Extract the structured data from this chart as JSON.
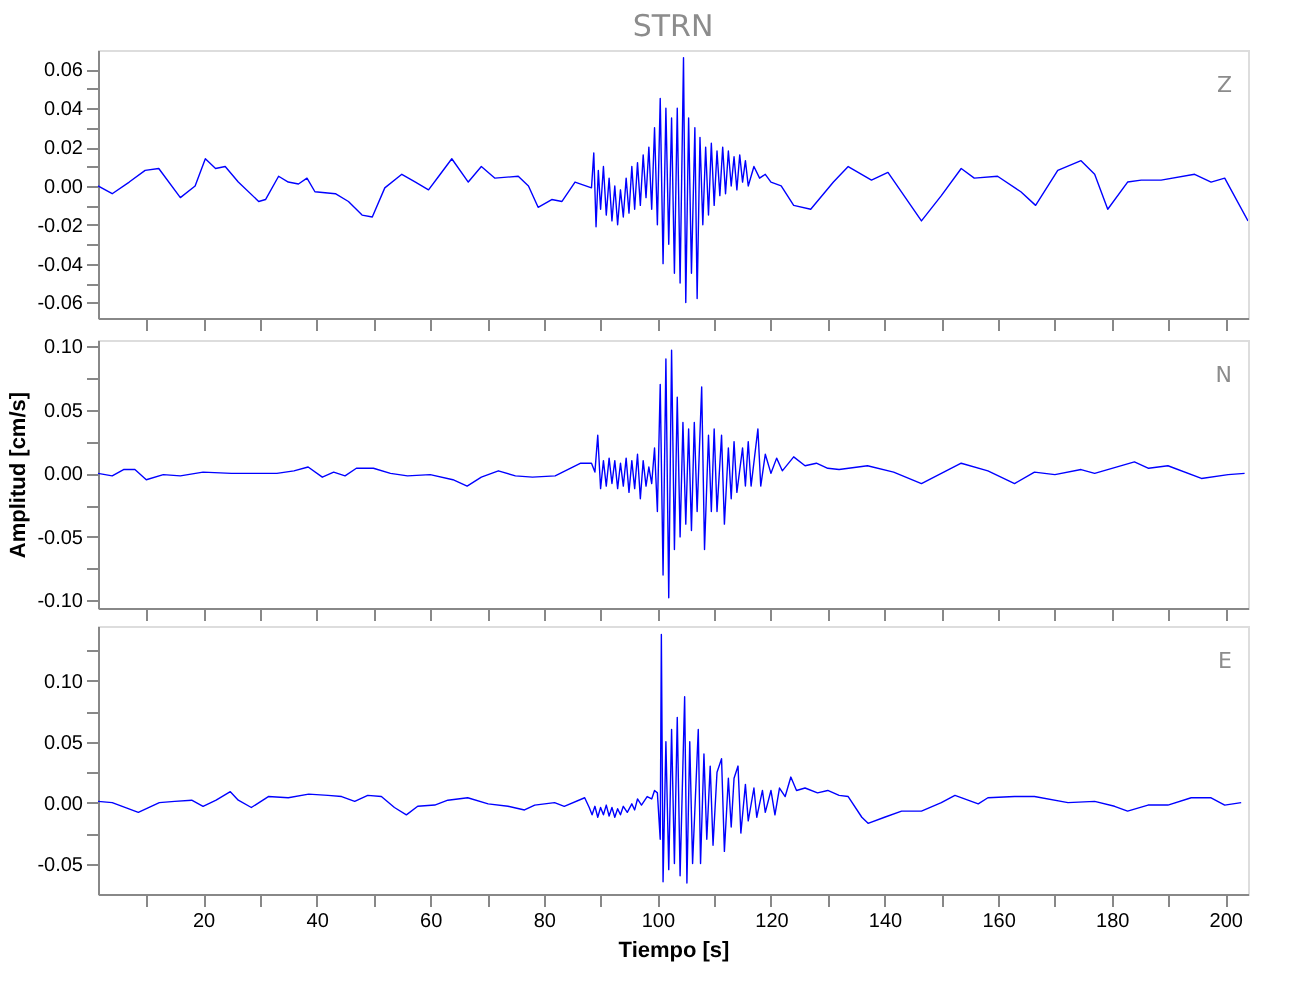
{
  "chart_data": [
    {
      "type": "line",
      "title": "STRN",
      "annotations": [
        "Z"
      ],
      "tick_labels": "y",
      "grid": false,
      "xlim": [
        1.5,
        204
      ],
      "ylim": [
        -0.068,
        0.07
      ],
      "xticks": [
        {
          "value": 10,
          "label": null
        },
        20,
        {
          "value": 30,
          "label": null
        },
        40,
        {
          "value": 50,
          "label": null
        },
        60,
        {
          "value": 70,
          "label": null
        },
        80,
        {
          "value": 90,
          "label": null
        },
        100,
        {
          "value": 110,
          "label": null
        },
        120,
        {
          "value": 130,
          "label": null
        },
        140,
        {
          "value": 150,
          "label": null
        },
        160,
        {
          "value": 170,
          "label": null
        },
        180,
        {
          "value": 190,
          "label": null
        },
        200
      ],
      "yticks": [
        {
          "value": -0.06,
          "label": "-0.06"
        },
        {
          "value": -0.05,
          "label": null
        },
        {
          "value": -0.04,
          "label": "-0.04"
        },
        {
          "value": -0.03,
          "label": null
        },
        {
          "value": -0.02,
          "label": "-0.02"
        },
        {
          "value": -0.01,
          "label": null
        },
        {
          "value": 0,
          "label": "0.00"
        },
        {
          "value": 0.01,
          "label": null
        },
        {
          "value": 0.02,
          "label": "0.02"
        },
        {
          "value": 0.03,
          "label": null
        },
        {
          "value": 0.04,
          "label": "0.04"
        },
        {
          "value": 0.05,
          "label": null
        },
        {
          "value": 0.06,
          "label": "0.06"
        }
      ],
      "x": [
        1.5,
        4,
        7,
        9.8,
        12.2,
        16,
        18.6,
        20.4,
        22.2,
        23.9,
        26.2,
        29.8,
        31,
        33.3,
        35,
        36.8,
        38.3,
        39.7,
        43.3,
        45.6,
        48,
        49.8,
        52,
        55,
        57.4,
        59.7,
        61.5,
        63.8,
        66.7,
        69,
        71.4,
        75.5,
        77.3,
        79,
        81.4,
        83.2,
        85.5,
        88.4,
        88.8,
        89.2,
        89.6,
        90,
        90.5,
        91,
        91.5,
        92,
        92.5,
        93,
        93.5,
        94,
        94.5,
        95,
        95.5,
        96,
        96.5,
        97,
        97.5,
        98,
        98.5,
        99,
        99.5,
        100,
        100.5,
        101,
        101.5,
        102,
        102.5,
        103,
        103.5,
        104,
        104.6,
        105,
        105.5,
        106,
        106.6,
        107,
        107.5,
        108,
        108.5,
        109,
        109.5,
        110,
        110.5,
        111,
        111.5,
        112,
        112.5,
        113,
        113.5,
        114,
        114.5,
        115,
        115.5,
        116,
        117,
        118,
        119,
        120,
        121.8,
        124,
        127,
        131,
        133.6,
        137.7,
        140.6,
        146.5,
        150,
        153.5,
        155.8,
        159.9,
        164,
        166.6,
        170.5,
        174.6,
        177,
        179.3,
        182.8,
        185.2,
        188.7,
        194.6,
        197.5,
        199.9,
        204
      ],
      "series": [
        {
          "color": "#0000ff",
          "values": [
            0.0,
            -0.004,
            0.002,
            0.008,
            0.009,
            -0.006,
            0.0,
            0.014,
            0.009,
            0.01,
            0.002,
            -0.008,
            -0.007,
            0.005,
            0.002,
            0.001,
            0.004,
            -0.003,
            -0.004,
            -0.008,
            -0.015,
            -0.016,
            -0.001,
            0.006,
            0.002,
            -0.002,
            0.005,
            0.014,
            0.002,
            0.01,
            0.004,
            0.005,
            0.0,
            -0.011,
            -0.007,
            -0.008,
            0.002,
            -0.001,
            0.017,
            -0.021,
            0.008,
            -0.012,
            0.01,
            -0.015,
            0.004,
            -0.018,
            0.0,
            -0.02,
            -0.002,
            -0.016,
            0.004,
            -0.014,
            0.01,
            -0.012,
            0.012,
            -0.01,
            0.016,
            -0.006,
            0.02,
            -0.012,
            0.03,
            -0.02,
            0.045,
            -0.04,
            0.04,
            -0.03,
            0.035,
            -0.045,
            0.04,
            -0.05,
            0.066,
            -0.06,
            0.035,
            -0.045,
            0.03,
            -0.058,
            0.025,
            -0.02,
            0.02,
            -0.015,
            0.022,
            -0.01,
            0.018,
            -0.005,
            0.02,
            -0.004,
            0.018,
            0.0,
            0.015,
            -0.002,
            0.016,
            0.002,
            0.013,
            0.0,
            0.01,
            0.004,
            0.006,
            0.002,
            0.0,
            -0.01,
            -0.012,
            0.002,
            0.01,
            0.003,
            0.007,
            -0.018,
            -0.005,
            0.009,
            0.004,
            0.005,
            -0.003,
            -0.01,
            0.008,
            0.013,
            0.006,
            -0.012,
            0.002,
            0.003,
            0.003,
            0.006,
            0.002,
            0.004,
            -0.018
          ]
        }
      ]
    },
    {
      "type": "line",
      "ylabel": "Amplitud [cm/s]",
      "annotations": [
        "N"
      ],
      "tick_labels": "y",
      "grid": false,
      "xlim": [
        1.5,
        204
      ],
      "ylim": [
        -0.106,
        0.105
      ],
      "xticks": [
        {
          "value": 10,
          "label": null
        },
        20,
        {
          "value": 30,
          "label": null
        },
        40,
        {
          "value": 50,
          "label": null
        },
        60,
        {
          "value": 70,
          "label": null
        },
        80,
        {
          "value": 90,
          "label": null
        },
        100,
        {
          "value": 110,
          "label": null
        },
        120,
        {
          "value": 130,
          "label": null
        },
        140,
        {
          "value": 150,
          "label": null
        },
        160,
        {
          "value": 170,
          "label": null
        },
        180,
        {
          "value": 190,
          "label": null
        },
        200
      ],
      "yticks": [
        {
          "value": -0.1,
          "label": "-0.10"
        },
        {
          "value": -0.075,
          "label": null
        },
        {
          "value": -0.05,
          "label": "-0.05"
        },
        {
          "value": -0.025,
          "label": null
        },
        {
          "value": 0,
          "label": "0.00"
        },
        {
          "value": 0.025,
          "label": null
        },
        {
          "value": 0.05,
          "label": "0.05"
        },
        {
          "value": 0.075,
          "label": null
        },
        {
          "value": 0.1,
          "label": "0.10"
        }
      ],
      "x": [
        1.5,
        4,
        6,
        8,
        10,
        13,
        16,
        20,
        25,
        30,
        33,
        36,
        38.5,
        41,
        43,
        45,
        47,
        50,
        53,
        56,
        60,
        64,
        66.5,
        69,
        72,
        75,
        78,
        82,
        86.5,
        88.4,
        89,
        89.5,
        90,
        90.5,
        91,
        91.5,
        92,
        92.5,
        93,
        93.5,
        94,
        94.5,
        95,
        95.5,
        96,
        96.5,
        97,
        97.5,
        98,
        98.5,
        99,
        99.5,
        100,
        100.5,
        101,
        101.5,
        102,
        102.5,
        103,
        103.5,
        104,
        104.5,
        105,
        105.5,
        106,
        106.5,
        107,
        107.8,
        108.3,
        109,
        109.5,
        110,
        110.5,
        111.3,
        111.8,
        112.5,
        113,
        113.5,
        114,
        115,
        115.5,
        116,
        116.5,
        117.7,
        118.2,
        119,
        120,
        121,
        122,
        124,
        126,
        128,
        130,
        132,
        137,
        141.6,
        146.5,
        153.5,
        158.2,
        162.9,
        166.4,
        170,
        174.6,
        177,
        184,
        186.5,
        189.9,
        195.8,
        200.5,
        203.4
      ],
      "series": [
        {
          "color": "#0000ff",
          "values": [
            0.0,
            -0.002,
            0.003,
            0.003,
            -0.005,
            -0.001,
            -0.002,
            0.001,
            0.0,
            0.0,
            0.0,
            0.002,
            0.005,
            -0.003,
            0.001,
            -0.002,
            0.004,
            0.004,
            0.0,
            -0.002,
            -0.001,
            -0.005,
            -0.01,
            -0.003,
            0.002,
            -0.002,
            -0.003,
            -0.002,
            0.008,
            0.008,
            0.001,
            0.03,
            -0.012,
            0.01,
            -0.01,
            0.012,
            -0.008,
            0.01,
            -0.012,
            0.008,
            -0.01,
            0.012,
            -0.015,
            0.01,
            -0.012,
            0.015,
            -0.02,
            0.01,
            -0.01,
            0.005,
            -0.008,
            0.02,
            -0.03,
            0.07,
            -0.08,
            0.09,
            -0.098,
            0.097,
            -0.06,
            0.06,
            -0.05,
            0.04,
            -0.04,
            0.035,
            -0.045,
            0.04,
            -0.03,
            0.068,
            -0.06,
            0.03,
            -0.03,
            0.035,
            -0.03,
            0.03,
            -0.04,
            0.02,
            -0.02,
            0.025,
            -0.015,
            0.02,
            -0.01,
            0.025,
            -0.01,
            0.035,
            -0.01,
            0.015,
            0.0,
            0.012,
            0.002,
            0.013,
            0.006,
            0.008,
            0.004,
            0.003,
            0.006,
            0.001,
            -0.008,
            0.008,
            0.002,
            -0.008,
            0.001,
            -0.001,
            0.003,
            0.0,
            0.009,
            0.004,
            0.006,
            -0.004,
            -0.001,
            0.0
          ]
        }
      ]
    },
    {
      "type": "line",
      "xlabel": "Tiempo [s]",
      "annotations": [
        "E"
      ],
      "grid": false,
      "xlim": [
        1.5,
        204
      ],
      "ylim": [
        -0.075,
        0.145
      ],
      "xticks": [
        {
          "value": 10,
          "label": null
        },
        20,
        {
          "value": 30,
          "label": null
        },
        40,
        {
          "value": 50,
          "label": null
        },
        60,
        {
          "value": 70,
          "label": null
        },
        80,
        {
          "value": 90,
          "label": null
        },
        100,
        {
          "value": 110,
          "label": null
        },
        120,
        {
          "value": 130,
          "label": null
        },
        140,
        {
          "value": 150,
          "label": null
        },
        160,
        {
          "value": 170,
          "label": null
        },
        180,
        {
          "value": 190,
          "label": null
        },
        200
      ],
      "yticks": [
        {
          "value": -0.05,
          "label": "-0.05"
        },
        {
          "value": -0.025,
          "label": null
        },
        {
          "value": 0,
          "label": "0.00"
        },
        {
          "value": 0.025,
          "label": null
        },
        {
          "value": 0.05,
          "label": "0.05"
        },
        {
          "value": 0.075,
          "label": null
        },
        {
          "value": 0.1,
          "label": "0.10"
        },
        {
          "value": 0.125,
          "label": null
        }
      ],
      "x": [
        1.5,
        4,
        8.6,
        12.3,
        15,
        18,
        20,
        22.3,
        24.8,
        26.2,
        28.5,
        31.5,
        35,
        38.6,
        42,
        44.4,
        46.7,
        49,
        51.4,
        53.7,
        55.8,
        57.8,
        60.8,
        63.1,
        66.6,
        70.2,
        73.7,
        76.6,
        78.4,
        81.9,
        83.6,
        87.2,
        88,
        88.5,
        89,
        89.5,
        90,
        90.5,
        91,
        91.5,
        92,
        92.5,
        93,
        93.5,
        94,
        94.7,
        95.5,
        96,
        96.5,
        97.2,
        98.2,
        99,
        99.5,
        100,
        100.5,
        100.7,
        101,
        101.5,
        102,
        102.5,
        103,
        103.5,
        104,
        104.8,
        105.2,
        105.7,
        106.2,
        107.2,
        107.6,
        108.2,
        108.7,
        109.3,
        109.8,
        110.5,
        111.3,
        111.8,
        112.5,
        113,
        113.5,
        114.2,
        114.7,
        115.5,
        116,
        117,
        117.5,
        118.5,
        119,
        120,
        120.7,
        121.5,
        122.5,
        123.5,
        124.5,
        126,
        128.2,
        130,
        132,
        133.6,
        136,
        137.1,
        140,
        143,
        146.5,
        150,
        152.4,
        156.5,
        158.2,
        162.9,
        166.4,
        172.3,
        177,
        180.5,
        182.8,
        186.4,
        189.9,
        194,
        197.5,
        199.9,
        202.8
      ],
      "series": [
        {
          "color": "#0000ff",
          "values": [
            0.001,
            0.0,
            -0.008,
            0.0,
            0.001,
            0.002,
            -0.003,
            0.002,
            0.009,
            0.002,
            -0.004,
            0.005,
            0.004,
            0.007,
            0.006,
            0.005,
            0.001,
            0.006,
            0.005,
            -0.004,
            -0.01,
            -0.003,
            -0.002,
            0.002,
            0.004,
            -0.001,
            -0.003,
            -0.006,
            -0.002,
            0.0,
            -0.003,
            0.004,
            -0.004,
            -0.01,
            -0.003,
            -0.012,
            -0.004,
            -0.01,
            -0.002,
            -0.011,
            -0.004,
            -0.012,
            -0.005,
            -0.01,
            -0.003,
            -0.008,
            -0.001,
            -0.006,
            0.003,
            -0.002,
            0.005,
            0.003,
            0.01,
            0.008,
            -0.03,
            0.138,
            -0.065,
            0.05,
            -0.055,
            0.06,
            -0.05,
            0.07,
            -0.06,
            0.087,
            -0.066,
            0.05,
            -0.05,
            0.06,
            -0.05,
            0.04,
            -0.03,
            0.03,
            -0.035,
            0.025,
            0.036,
            -0.04,
            0.02,
            -0.02,
            0.02,
            0.03,
            -0.025,
            0.015,
            -0.015,
            0.012,
            -0.012,
            0.01,
            -0.008,
            0.01,
            -0.01,
            0.012,
            0.005,
            0.021,
            0.01,
            0.012,
            0.008,
            0.01,
            0.006,
            0.005,
            -0.012,
            -0.017,
            -0.012,
            -0.007,
            -0.007,
            0.0,
            0.006,
            -0.001,
            0.004,
            0.005,
            0.005,
            0.0,
            0.001,
            -0.003,
            -0.007,
            -0.002,
            -0.002,
            0.004,
            0.004,
            -0.002,
            0.0
          ]
        }
      ]
    }
  ]
}
